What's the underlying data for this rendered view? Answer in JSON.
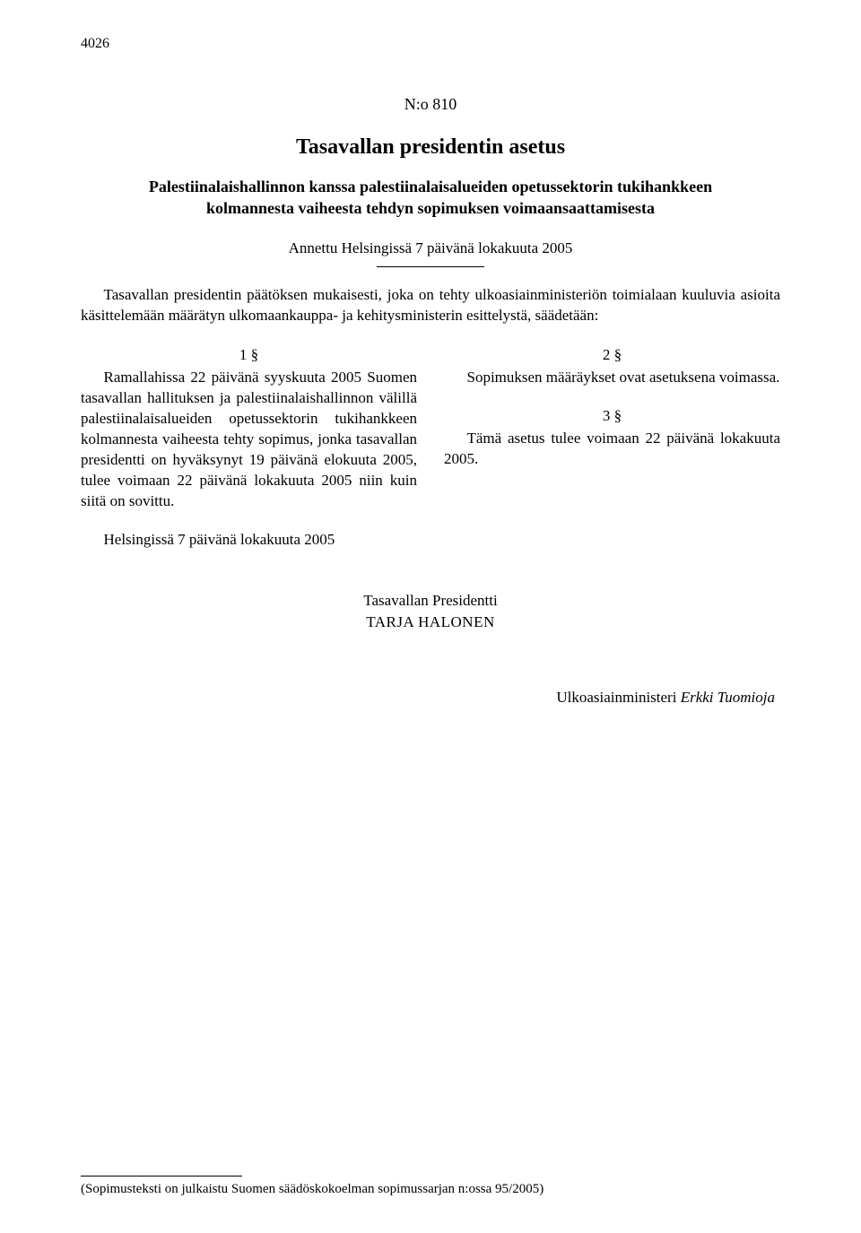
{
  "page_number": "4026",
  "doc_number": "N:o 810",
  "doc_type": "Tasavallan presidentin asetus",
  "doc_title": "Palestiinalaishallinnon kanssa palestiinalaisalueiden opetussektorin tukihankkeen kolmannesta vaiheesta tehdyn sopimuksen voimaansaattamisesta",
  "issued_at": "Annettu Helsingissä 7 päivänä lokakuuta 2005",
  "preamble": "Tasavallan presidentin päätöksen mukaisesti, joka on tehty ulkoasiainministeriön toimialaan kuuluvia asioita käsittelemään määrätyn ulkomaankauppa- ja kehitysministerin esittelystä, säädetään:",
  "sections": {
    "s1": {
      "num": "1 §",
      "body": "Ramallahissa 22 päivänä syyskuuta 2005 Suomen tasavallan hallituksen ja palestiinalaishallinnon välillä palestiinalaisalueiden opetussektorin tukihankkeen kolmannesta vaiheesta tehty sopimus, jonka tasavallan presidentti on hyväksynyt 19 päivänä elokuuta 2005, tulee voimaan 22 päivänä lokakuuta 2005 niin kuin siitä on sovittu."
    },
    "s2": {
      "num": "2 §",
      "body": "Sopimuksen määräykset ovat asetuksena voimassa."
    },
    "s3": {
      "num": "3 §",
      "body": "Tämä asetus tulee voimaan 22 päivänä lokakuuta 2005."
    }
  },
  "closing_line": "Helsingissä 7 päivänä lokakuuta 2005",
  "signature": {
    "title": "Tasavallan Presidentti",
    "name": "TARJA HALONEN"
  },
  "minister": {
    "role": "Ulkoasiainministeri",
    "name": "Erkki Tuomioja"
  },
  "footnote": "(Sopimusteksti on julkaistu Suomen säädöskokoelman sopimussarjan n:ossa 95/2005)"
}
